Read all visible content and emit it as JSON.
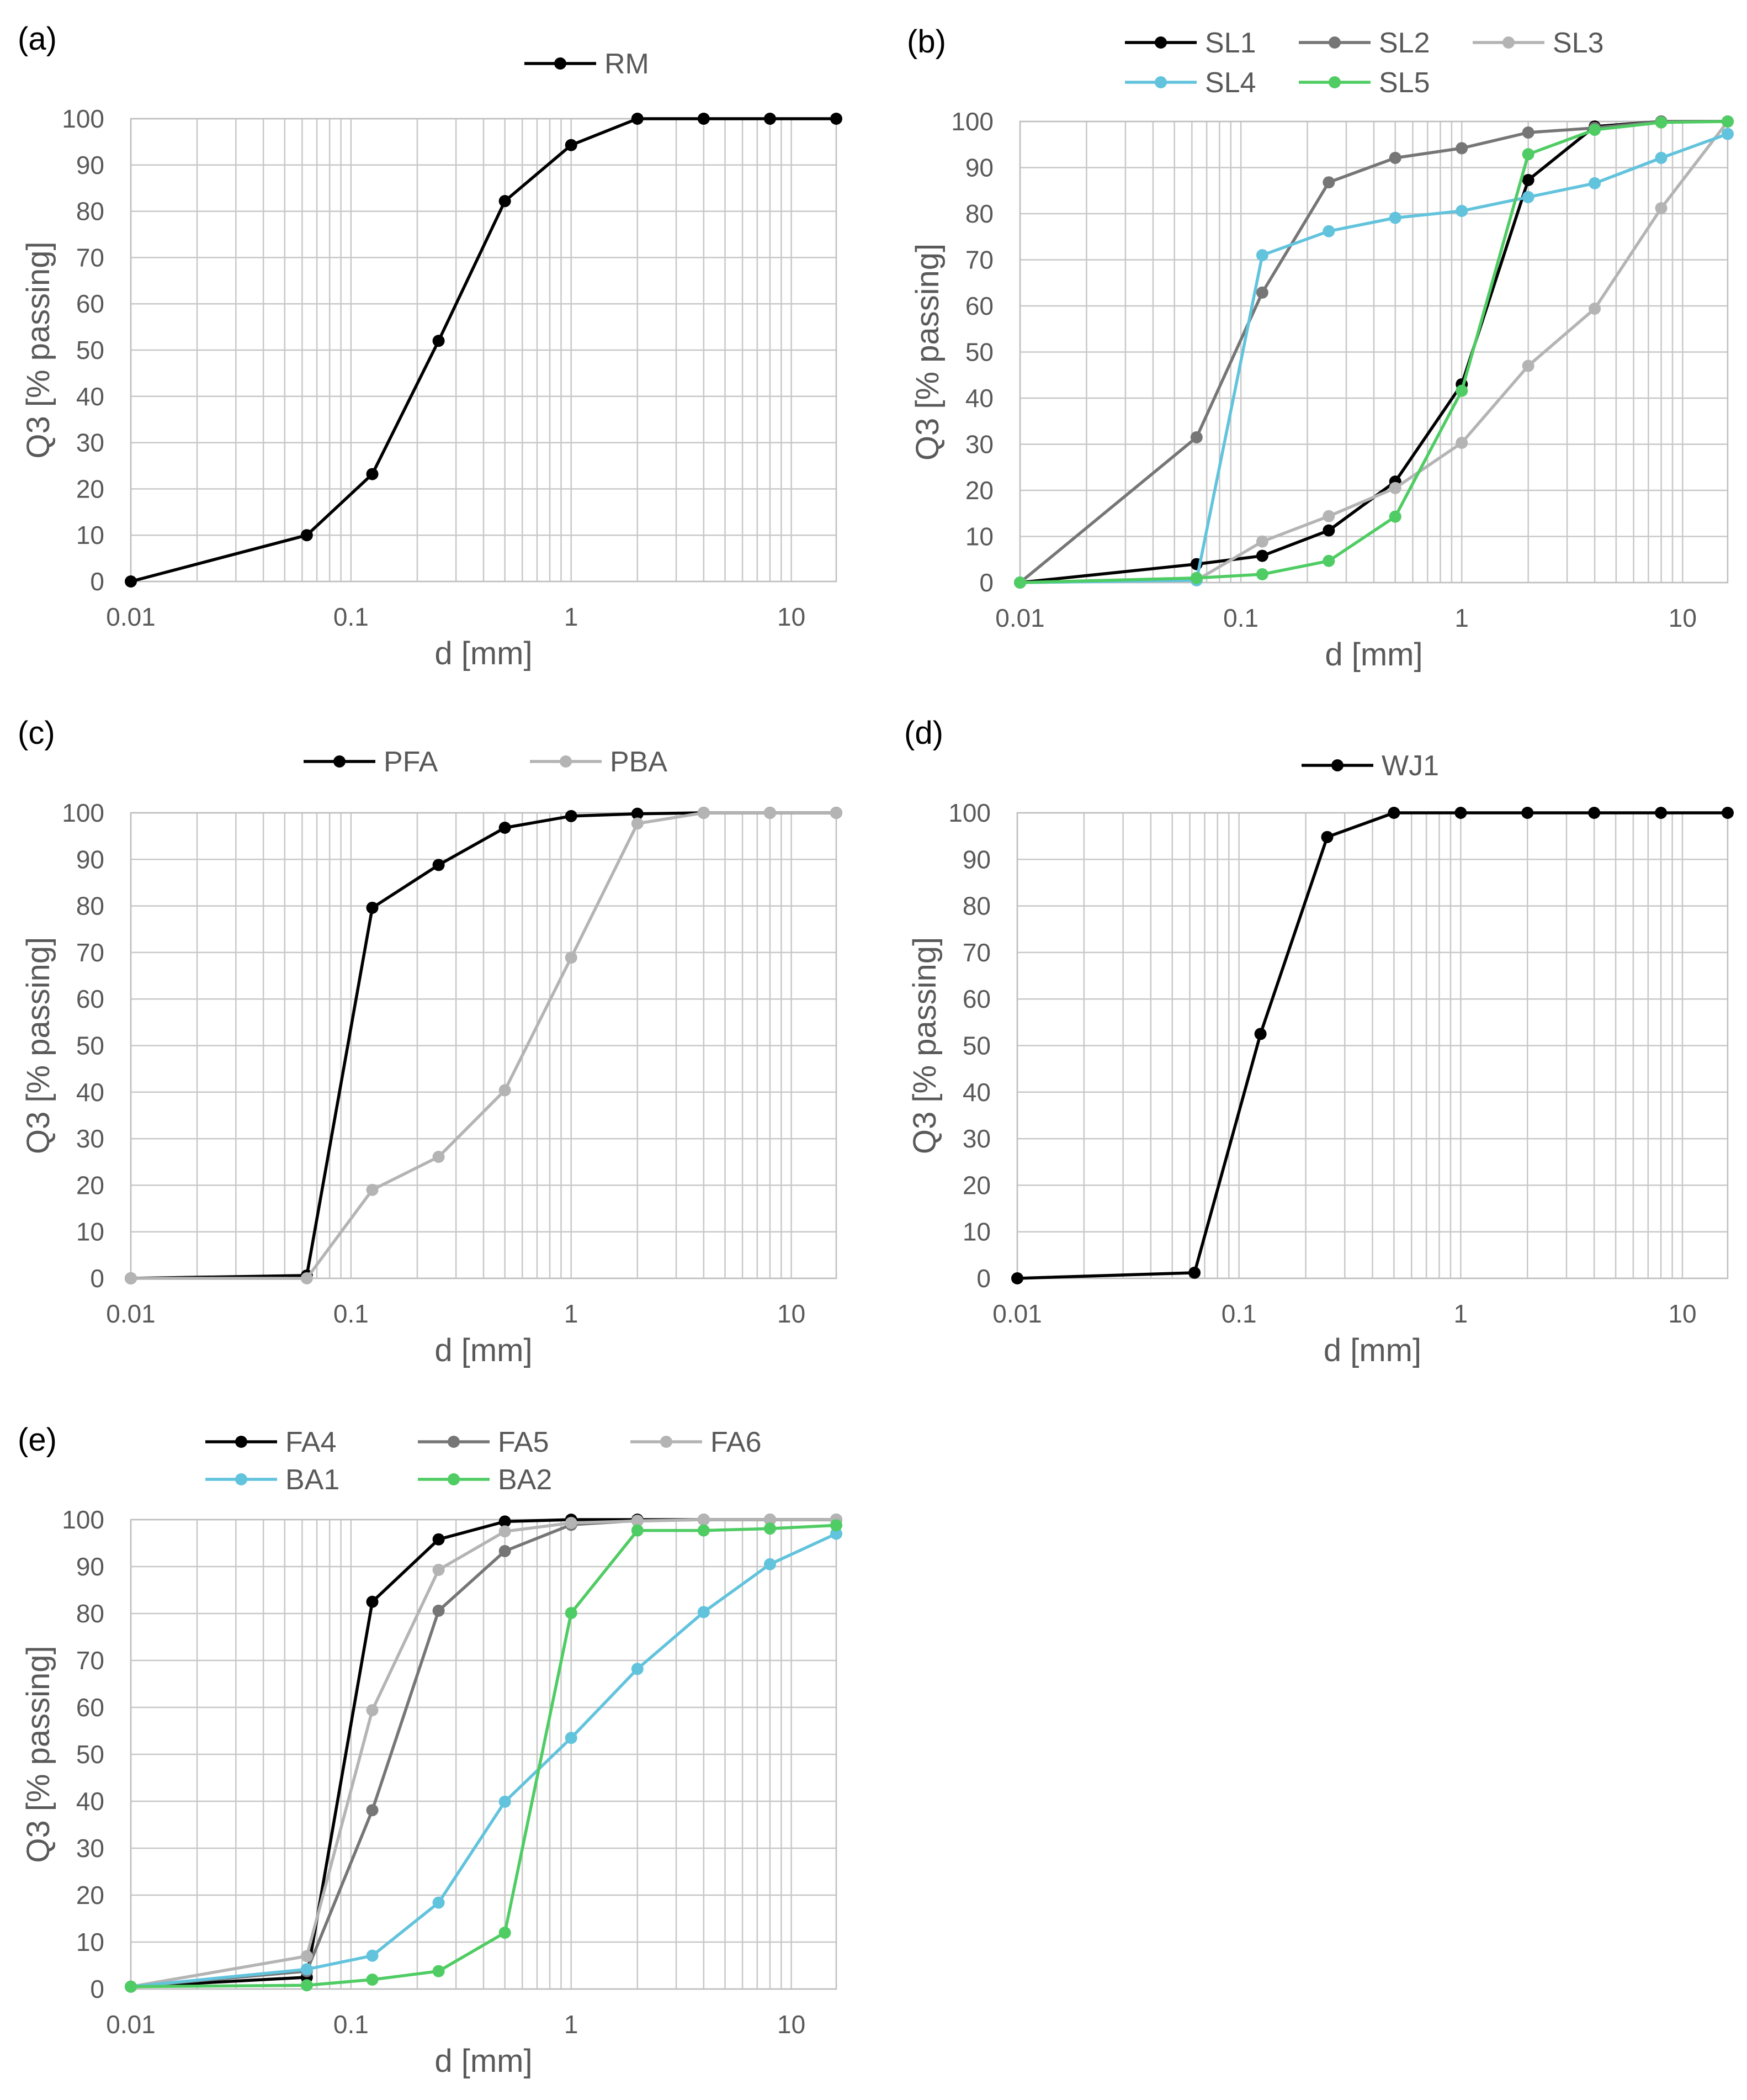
{
  "colors": {
    "black": "#000000",
    "dark_gray": "#767676",
    "light_gray": "#b4b4b4",
    "blue": "#62c3dc",
    "green": "#4fcc63",
    "axis_text": "#595959",
    "grid": "#c8c8c8"
  },
  "chart_data": [
    {
      "panel_label": "(a)",
      "type": "line",
      "xscale": "log",
      "xlabel": "d [mm]",
      "ylabel": "Q3 [% passing]",
      "xlim": [
        0.01,
        16
      ],
      "ylim": [
        0,
        100
      ],
      "x_ticks": [
        "0.01",
        "0.1",
        "1",
        "10"
      ],
      "y_ticks": [
        "0",
        "10",
        "20",
        "30",
        "40",
        "50",
        "60",
        "70",
        "80",
        "90",
        "100"
      ],
      "legend_columns": 1,
      "legend_position": "top-center",
      "x": [
        0.01,
        0.063,
        0.125,
        0.25,
        0.5,
        1,
        2,
        4,
        8,
        16
      ],
      "series": [
        {
          "name": "RM",
          "color": "#000000",
          "values": [
            0,
            10,
            23.2,
            52,
            82.2,
            94.3,
            100,
            100,
            100,
            100
          ]
        }
      ]
    },
    {
      "panel_label": "(b)",
      "type": "line",
      "xscale": "log",
      "xlabel": "d [mm]",
      "ylabel": "Q3 [% passing]",
      "xlim": [
        0.01,
        16
      ],
      "ylim": [
        0,
        100
      ],
      "x_ticks": [
        "0.01",
        "0.1",
        "1",
        "10"
      ],
      "y_ticks": [
        "0",
        "10",
        "20",
        "30",
        "40",
        "50",
        "60",
        "70",
        "80",
        "90",
        "100"
      ],
      "legend_columns": 3,
      "legend_position": "top-center",
      "x": [
        0.01,
        0.063,
        0.125,
        0.25,
        0.5,
        1,
        2,
        4,
        8,
        16
      ],
      "series": [
        {
          "name": "SL1",
          "color": "#000000",
          "values": [
            0,
            4,
            5.8,
            11.3,
            21.9,
            43,
            87.3,
            98.9,
            100,
            100
          ]
        },
        {
          "name": "SL2",
          "color": "#767676",
          "values": [
            0,
            31.5,
            62.9,
            86.8,
            92.1,
            94.2,
            97.6,
            98.6,
            100,
            100
          ]
        },
        {
          "name": "SL3",
          "color": "#b4b4b4",
          "values": [
            0,
            0.5,
            8.9,
            14.4,
            20.5,
            30.3,
            47,
            59.4,
            81.2,
            100
          ]
        },
        {
          "name": "SL4",
          "color": "#62c3dc",
          "values": [
            0,
            0.5,
            71,
            76.2,
            79.1,
            80.6,
            83.6,
            86.6,
            92.1,
            97.3
          ]
        },
        {
          "name": "SL5",
          "color": "#4fcc63",
          "values": [
            0,
            1,
            1.8,
            4.7,
            14.3,
            41.6,
            92.9,
            98.2,
            99.8,
            100
          ]
        }
      ]
    },
    {
      "panel_label": "(c)",
      "type": "line",
      "xscale": "log",
      "xlabel": "d [mm]",
      "ylabel": "Q3 [% passing]",
      "xlim": [
        0.01,
        16
      ],
      "ylim": [
        0,
        100
      ],
      "x_ticks": [
        "0.01",
        "0.1",
        "1",
        "10"
      ],
      "y_ticks": [
        "0",
        "10",
        "20",
        "30",
        "40",
        "50",
        "60",
        "70",
        "80",
        "90",
        "100"
      ],
      "legend_columns": 2,
      "legend_position": "top-center",
      "x": [
        0.01,
        0.063,
        0.125,
        0.25,
        0.5,
        1,
        2,
        4,
        8,
        16
      ],
      "series": [
        {
          "name": "PFA",
          "color": "#000000",
          "values": [
            0,
            0.6,
            79.6,
            88.8,
            96.8,
            99.3,
            99.8,
            100,
            100,
            100
          ]
        },
        {
          "name": "PBA",
          "color": "#b4b4b4",
          "values": [
            0,
            0,
            19,
            26.1,
            40.4,
            68.9,
            97.7,
            100,
            100,
            100
          ]
        }
      ]
    },
    {
      "panel_label": "(d)",
      "type": "line",
      "xscale": "log",
      "xlabel": "d [mm]",
      "ylabel": "Q3 [% passing]",
      "xlim": [
        0.01,
        16
      ],
      "ylim": [
        0,
        100
      ],
      "x_ticks": [
        "0.01",
        "0.1",
        "1",
        "10"
      ],
      "y_ticks": [
        "0",
        "10",
        "20",
        "30",
        "40",
        "50",
        "60",
        "70",
        "80",
        "90",
        "100"
      ],
      "legend_columns": 1,
      "legend_position": "top-center",
      "x": [
        0.01,
        0.063,
        0.125,
        0.25,
        0.5,
        1,
        2,
        4,
        8,
        16
      ],
      "series": [
        {
          "name": "WJ1",
          "color": "#000000",
          "values": [
            0,
            1.2,
            52.5,
            94.8,
            100,
            100,
            100,
            100,
            100,
            100
          ]
        }
      ]
    },
    {
      "panel_label": "(e)",
      "type": "line",
      "xscale": "log",
      "xlabel": "d [mm]",
      "ylabel": "Q3 [% passing]",
      "xlim": [
        0.01,
        16
      ],
      "ylim": [
        0,
        100
      ],
      "x_ticks": [
        "0.01",
        "0.1",
        "1",
        "10"
      ],
      "y_ticks": [
        "0",
        "10",
        "20",
        "30",
        "40",
        "50",
        "60",
        "70",
        "80",
        "90",
        "100"
      ],
      "legend_columns": 3,
      "legend_position": "top-left",
      "x": [
        0.01,
        0.063,
        0.125,
        0.25,
        0.5,
        1,
        2,
        4,
        8,
        16
      ],
      "series": [
        {
          "name": "FA4",
          "color": "#000000",
          "values": [
            0.5,
            2.5,
            82.5,
            95.8,
            99.6,
            100,
            100,
            100,
            100,
            100
          ]
        },
        {
          "name": "FA5",
          "color": "#767676",
          "values": [
            0.5,
            3.8,
            38.1,
            80.6,
            93.3,
            98.9,
            99.8,
            100,
            100,
            100
          ]
        },
        {
          "name": "FA6",
          "color": "#b4b4b4",
          "values": [
            0.5,
            7,
            59.4,
            89.3,
            97.5,
            99.3,
            99.7,
            100,
            100,
            100
          ]
        },
        {
          "name": "BA1",
          "color": "#62c3dc",
          "values": [
            0.5,
            4.2,
            7.1,
            18.4,
            39.9,
            53.5,
            68.2,
            80.3,
            90.5,
            97
          ]
        },
        {
          "name": "BA2",
          "color": "#4fcc63",
          "values": [
            0.5,
            0.8,
            2,
            3.8,
            12,
            80.1,
            97.7,
            97.7,
            98.1,
            98.8
          ]
        }
      ]
    }
  ]
}
